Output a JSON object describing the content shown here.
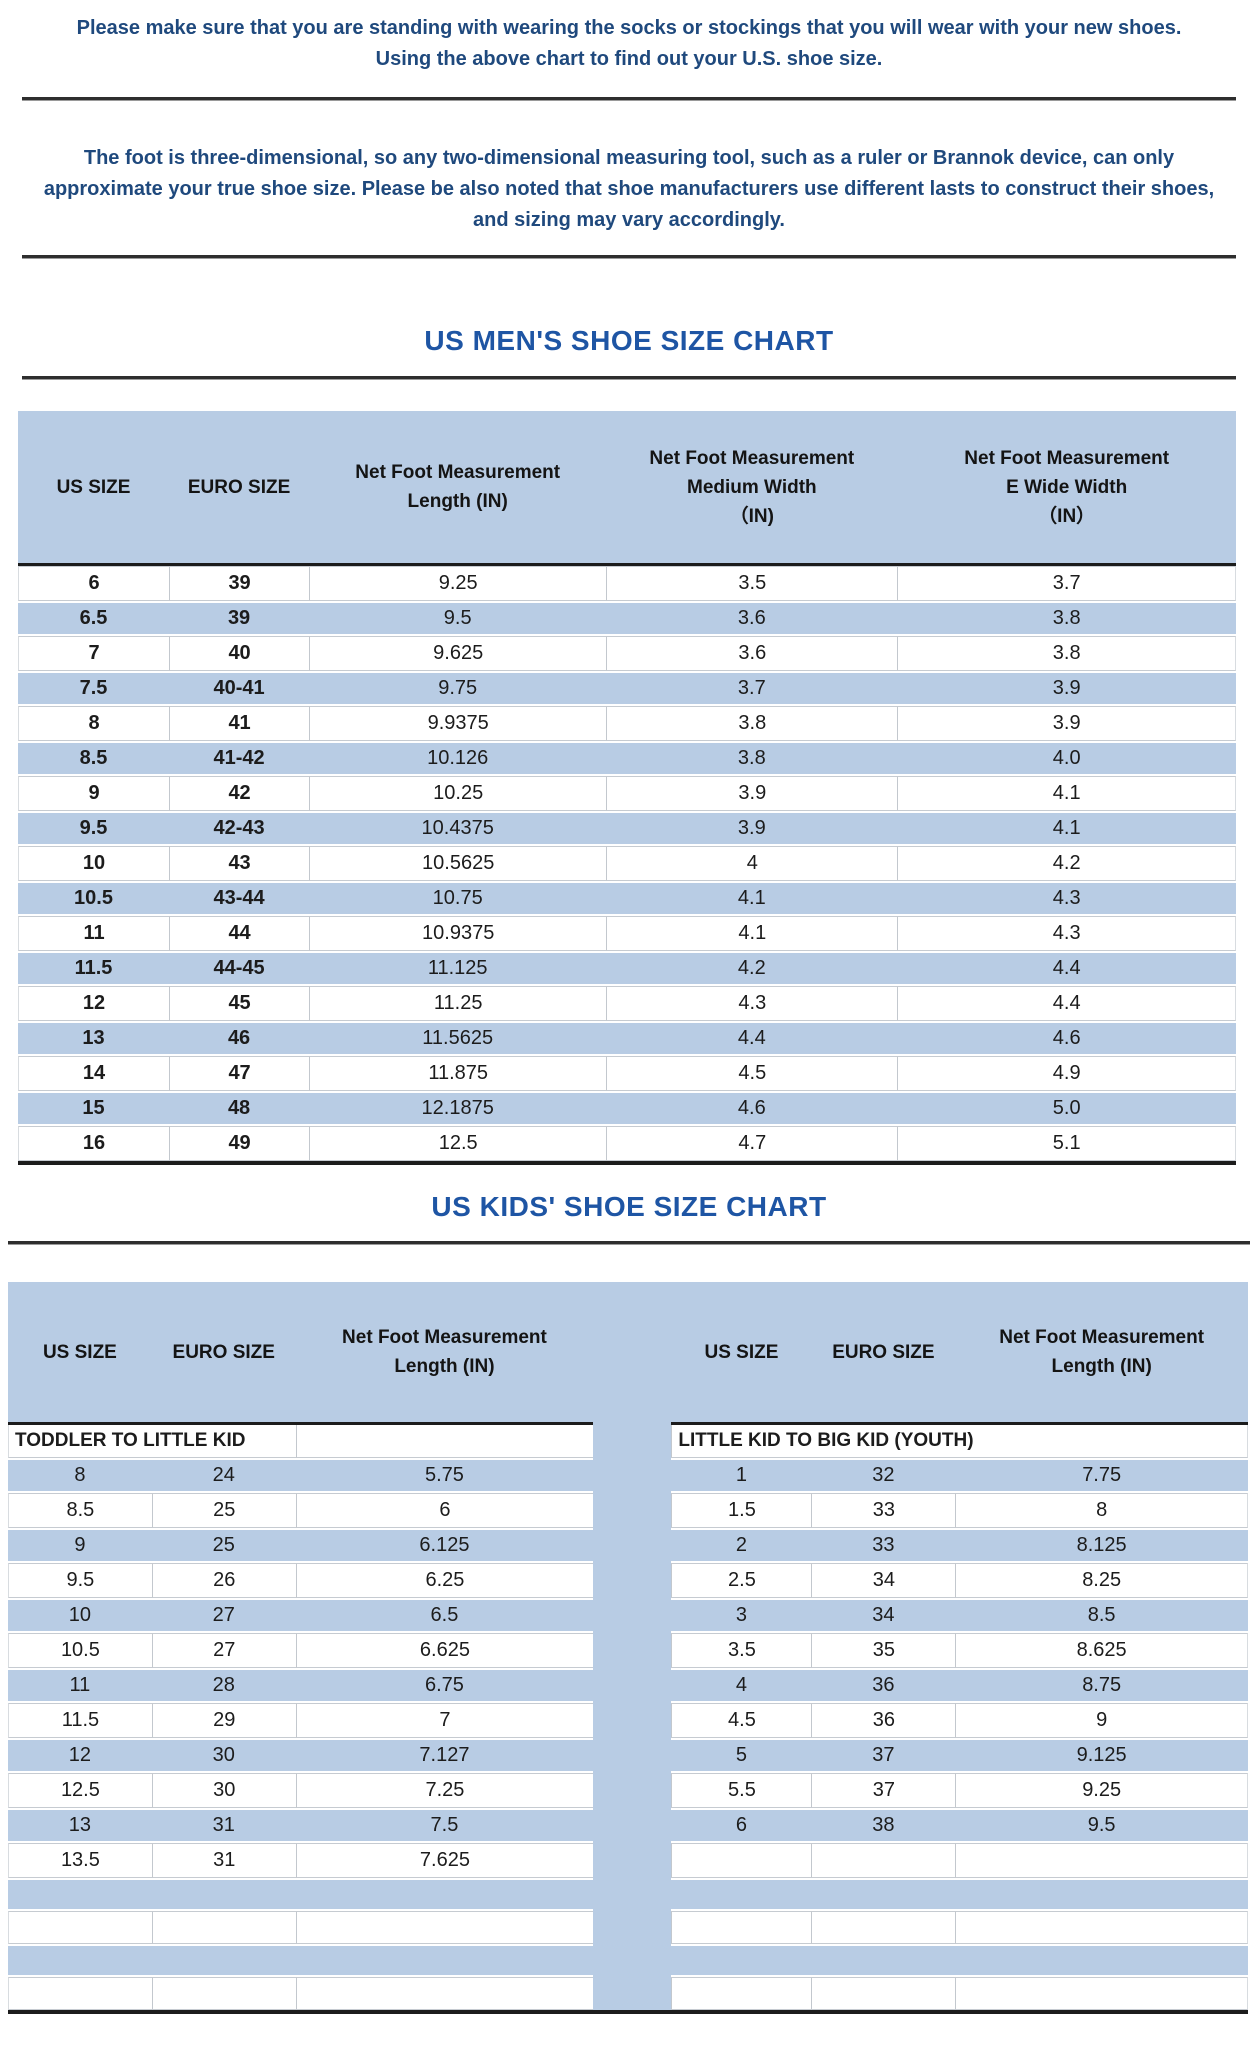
{
  "colors": {
    "stripe_blue": "#b8cce4",
    "title_blue": "#1e55a4",
    "note_navy": "#1f497d",
    "rule_dark": "#2e2e2e"
  },
  "notes": {
    "note1": "Please make sure that you are standing with wearing the socks or stockings that you will wear with your new shoes. Using the above chart to find out your U.S. shoe size.",
    "note2": "The foot is three-dimensional, so any two-dimensional measuring tool, such as a ruler or Brannok device, can only approximate your true shoe size. Please be also noted that shoe manufacturers use different lasts to construct their shoes, and sizing may vary accordingly."
  },
  "mens_chart": {
    "title": "US MEN'S SHOE SIZE CHART",
    "headers": [
      "US SIZE",
      "EURO SIZE",
      "Net Foot Measurement\nLength (IN)",
      "Net Foot Measurement\nMedium Width\n（IN)",
      "Net Foot Measurement\nE Wide Width\n（IN）"
    ],
    "rows": [
      [
        "6",
        "39",
        "9.25",
        "3.5",
        "3.7"
      ],
      [
        "6.5",
        "39",
        "9.5",
        "3.6",
        "3.8"
      ],
      [
        "7",
        "40",
        "9.625",
        "3.6",
        "3.8"
      ],
      [
        "7.5",
        "40-41",
        "9.75",
        "3.7",
        "3.9"
      ],
      [
        "8",
        "41",
        "9.9375",
        "3.8",
        "3.9"
      ],
      [
        "8.5",
        "41-42",
        "10.126",
        "3.8",
        "4.0"
      ],
      [
        "9",
        "42",
        "10.25",
        "3.9",
        "4.1"
      ],
      [
        "9.5",
        "42-43",
        "10.4375",
        "3.9",
        "4.1"
      ],
      [
        "10",
        "43",
        "10.5625",
        "4",
        "4.2"
      ],
      [
        "10.5",
        "43-44",
        "10.75",
        "4.1",
        "4.3"
      ],
      [
        "11",
        "44",
        "10.9375",
        "4.1",
        "4.3"
      ],
      [
        "11.5",
        "44-45",
        "11.125",
        "4.2",
        "4.4"
      ],
      [
        "12",
        "45",
        "11.25",
        "4.3",
        "4.4"
      ],
      [
        "13",
        "46",
        "11.5625",
        "4.4",
        "4.6"
      ],
      [
        "14",
        "47",
        "11.875",
        "4.5",
        "4.9"
      ],
      [
        "15",
        "48",
        "12.1875",
        "4.6",
        "5.0"
      ],
      [
        "16",
        "49",
        "12.5",
        "4.7",
        "5.1"
      ]
    ]
  },
  "kids_chart": {
    "title": "US KIDS' SHOE SIZE CHART",
    "headers": [
      "US SIZE",
      "EURO SIZE",
      "Net Foot Measurement\nLength (IN)",
      "",
      "US SIZE",
      "EURO SIZE",
      "Net Foot Measurement\nLength (IN)"
    ],
    "left_group_label": "TODDLER TO LITTLE KID",
    "right_group_label": "LITTLE KID TO BIG KID (YOUTH)",
    "rows": [
      {
        "left": [
          "8",
          "24",
          "5.75"
        ],
        "right": [
          "1",
          "32",
          "7.75"
        ]
      },
      {
        "left": [
          "8.5",
          "25",
          "6"
        ],
        "right": [
          "1.5",
          "33",
          "8"
        ]
      },
      {
        "left": [
          "9",
          "25",
          "6.125"
        ],
        "right": [
          "2",
          "33",
          "8.125"
        ]
      },
      {
        "left": [
          "9.5",
          "26",
          "6.25"
        ],
        "right": [
          "2.5",
          "34",
          "8.25"
        ]
      },
      {
        "left": [
          "10",
          "27",
          "6.5"
        ],
        "right": [
          "3",
          "34",
          "8.5"
        ]
      },
      {
        "left": [
          "10.5",
          "27",
          "6.625"
        ],
        "right": [
          "3.5",
          "35",
          "8.625"
        ]
      },
      {
        "left": [
          "11",
          "28",
          "6.75"
        ],
        "right": [
          "4",
          "36",
          "8.75"
        ]
      },
      {
        "left": [
          "11.5",
          "29",
          "7"
        ],
        "right": [
          "4.5",
          "36",
          "9"
        ]
      },
      {
        "left": [
          "12",
          "30",
          "7.127"
        ],
        "right": [
          "5",
          "37",
          "9.125"
        ]
      },
      {
        "left": [
          "12.5",
          "30",
          "7.25"
        ],
        "right": [
          "5.5",
          "37",
          "9.25"
        ]
      },
      {
        "left": [
          "13",
          "31",
          "7.5"
        ],
        "right": [
          "6",
          "38",
          "9.5"
        ]
      },
      {
        "left": [
          "13.5",
          "31",
          "7.625"
        ],
        "right": [
          "",
          "",
          ""
        ]
      },
      {
        "left": [
          "",
          "",
          ""
        ],
        "right": [
          "",
          "",
          ""
        ]
      },
      {
        "left": [
          "",
          "",
          ""
        ],
        "right": [
          "",
          "",
          ""
        ]
      },
      {
        "left": [
          "",
          "",
          ""
        ],
        "right": [
          "",
          "",
          ""
        ]
      },
      {
        "left": [
          "",
          "",
          ""
        ],
        "right": [
          "",
          "",
          ""
        ]
      }
    ]
  }
}
